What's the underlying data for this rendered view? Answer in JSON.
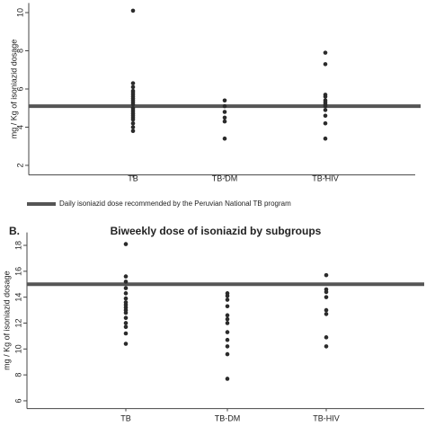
{
  "chart_data": [
    {
      "type": "dot",
      "ylabel": "mg / Kg of isoniazid  dosage",
      "categories": [
        "TB",
        "TB-DM",
        "TB-HIV"
      ],
      "values": [
        [
          10.1,
          6.3,
          6.1,
          5.9,
          5.8,
          5.7,
          5.6,
          5.5,
          5.4,
          5.3,
          5.2,
          5.0,
          4.9,
          4.8,
          4.7,
          4.6,
          4.5,
          4.4,
          4.2,
          4.0,
          3.8
        ],
        [
          5.4,
          5.1,
          4.8,
          4.5,
          4.3,
          3.4
        ],
        [
          7.9,
          7.3,
          5.7,
          5.6,
          5.4,
          5.3,
          5.2,
          5.1,
          4.9,
          4.6,
          4.2,
          3.4
        ]
      ],
      "color": "#2b2b2b",
      "reference_line": {
        "value": 5.1,
        "color": "#555555",
        "label": "Daily isoniazid dose recommended by the Peruvian National TB program"
      },
      "ylim": [
        1.5,
        10.5
      ],
      "yticks": [
        2,
        4,
        6,
        8,
        10
      ]
    },
    {
      "type": "dot",
      "panel_label": "B.",
      "title": "Biweekly dose of isoniazid by subgroups",
      "ylabel": "mg / Kg of isoniazid  dosage",
      "categories": [
        "TB",
        "TB-DM",
        "TB-HIV"
      ],
      "values": [
        [
          18.1,
          15.6,
          15.2,
          14.7,
          14.3,
          13.9,
          13.6,
          13.4,
          13.2,
          13.0,
          12.8,
          12.4,
          12.0,
          11.7,
          11.2,
          10.4
        ],
        [
          14.3,
          14.1,
          13.8,
          13.3,
          12.6,
          12.3,
          12.0,
          11.3,
          10.7,
          10.2,
          9.6,
          7.7
        ],
        [
          15.7,
          14.6,
          14.4,
          14.0,
          13.0,
          12.7,
          10.9,
          10.2
        ]
      ],
      "color": "#2b2b2b",
      "reference_line": {
        "value": 15,
        "color": "#555555"
      },
      "ylim": [
        5.4,
        19
      ],
      "yticks": [
        6,
        8,
        10,
        12,
        14,
        16,
        18
      ]
    }
  ]
}
